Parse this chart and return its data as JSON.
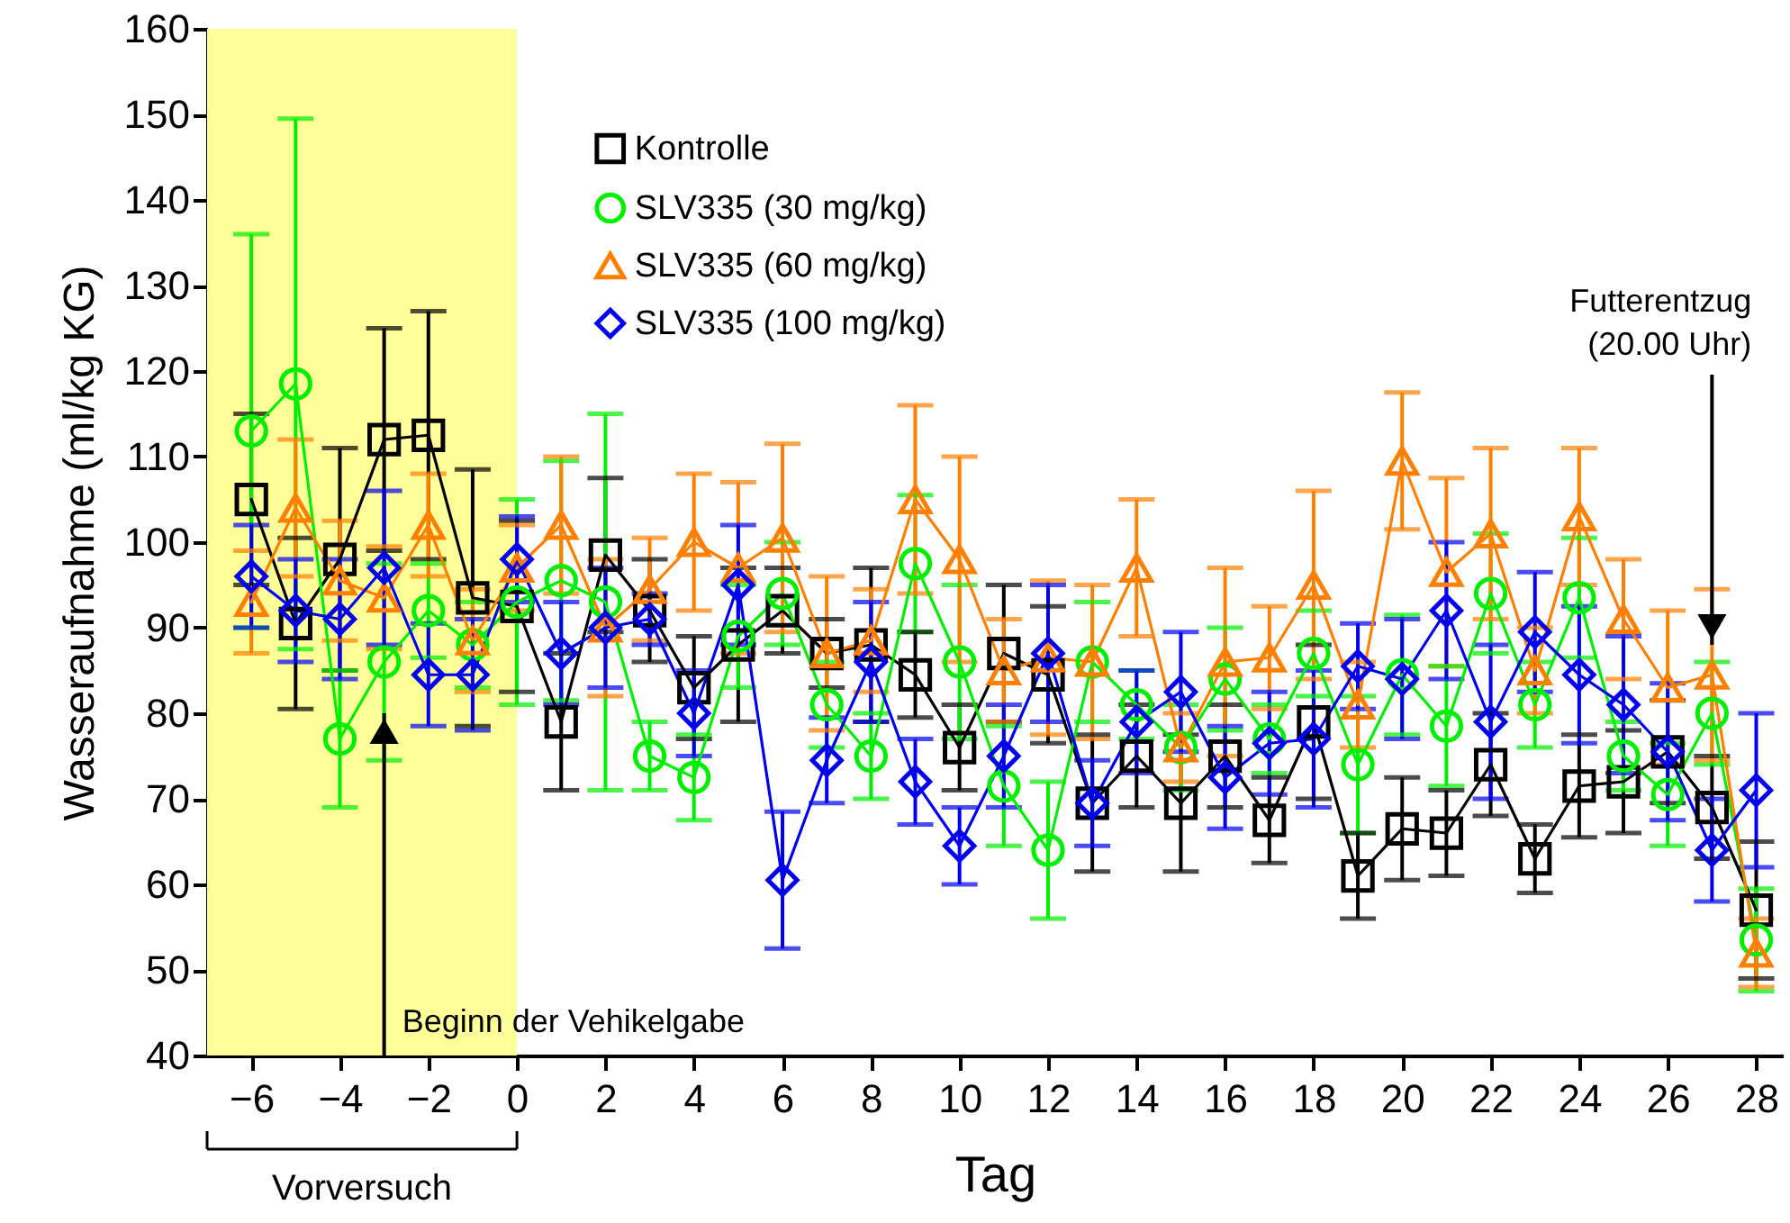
{
  "chart_data": {
    "type": "line",
    "xlabel": "Tag",
    "ylabel": "Wasseraufnahme (ml/kg KG)",
    "x": [
      -6,
      -5,
      -4,
      -3,
      -2,
      -1,
      0,
      1,
      2,
      3,
      4,
      5,
      6,
      7,
      8,
      9,
      10,
      11,
      12,
      13,
      14,
      15,
      16,
      17,
      18,
      19,
      20,
      21,
      22,
      23,
      24,
      25,
      26,
      27,
      28
    ],
    "xlim": [
      -7,
      28.6
    ],
    "xticks": [
      -6,
      -4,
      -2,
      0,
      2,
      4,
      6,
      8,
      10,
      12,
      14,
      16,
      18,
      20,
      22,
      24,
      26,
      28
    ],
    "ylim": [
      40,
      160
    ],
    "yticks": [
      40,
      50,
      60,
      70,
      80,
      90,
      100,
      110,
      120,
      130,
      140,
      150,
      160
    ],
    "grid": false,
    "legend": "top",
    "line_style": "solid",
    "series": [
      {
        "name": "Kontrolle",
        "color": "#000000",
        "marker": "square",
        "values": [
          105,
          90.5,
          98,
          112,
          112.5,
          93.5,
          92.5,
          79,
          98.5,
          92,
          83,
          88,
          92,
          87,
          88,
          84.5,
          76,
          87,
          84.5,
          69.5,
          75,
          69.5,
          75,
          67.5,
          79,
          61,
          66.5,
          66,
          74,
          63,
          71.5,
          72,
          75.5,
          69,
          57
        ],
        "errors": [
          10,
          10,
          13,
          13,
          14.5,
          15,
          10,
          8,
          9,
          6,
          6,
          9,
          5,
          4,
          9,
          5,
          5,
          8,
          8,
          8,
          6,
          8,
          6,
          5,
          9,
          5,
          6,
          5,
          6,
          4,
          6,
          6,
          6,
          6,
          8
        ]
      },
      {
        "name": "SLV335 (30 mg/kg)",
        "color": "#00ee00",
        "marker": "circle",
        "values": [
          113,
          118.5,
          77,
          86,
          92,
          88,
          93,
          95.5,
          93,
          75,
          72.5,
          89,
          94,
          81,
          75,
          97.5,
          86,
          71.5,
          64,
          86,
          81,
          76,
          84,
          77,
          87,
          74,
          84.5,
          78.5,
          94,
          81,
          93.5,
          75,
          70.5,
          80,
          53.5
        ],
        "errors": [
          23,
          31,
          8,
          11.5,
          5.5,
          5,
          12,
          14,
          22,
          4,
          5,
          6,
          6,
          5,
          5,
          8,
          9,
          7,
          8,
          7,
          4,
          5,
          6,
          4,
          5,
          8,
          7,
          7,
          7,
          5,
          7,
          4,
          6,
          6,
          6
        ]
      },
      {
        "name": "SLV335 (60 mg/kg)",
        "color": "#ff8000",
        "marker": "triangle",
        "values": [
          93,
          104,
          95.5,
          93.5,
          102,
          88.5,
          97,
          102,
          90,
          94.5,
          100,
          97,
          100.5,
          87,
          88.5,
          105,
          98,
          85,
          86.5,
          86,
          97,
          76,
          86,
          86.5,
          95,
          81,
          109.5,
          96.5,
          101,
          85,
          103,
          91,
          83,
          84.5,
          52
        ],
        "errors": [
          6,
          8,
          7,
          6,
          6,
          6,
          5,
          8,
          8,
          6,
          8,
          10,
          11,
          9,
          6,
          11,
          12,
          6,
          9,
          9,
          8,
          4,
          11,
          6,
          11,
          5,
          8,
          11,
          10,
          5,
          8,
          7,
          9,
          10,
          4
        ]
      },
      {
        "name": "SLV335 (100 mg/kg)",
        "color": "#0000ee",
        "marker": "diamond",
        "values": [
          96,
          92,
          91,
          97,
          84.5,
          84.5,
          98,
          87,
          90,
          91,
          80,
          95,
          60.5,
          74.5,
          86,
          72,
          64.5,
          75,
          87,
          69.5,
          79,
          82.5,
          72.5,
          76.5,
          77,
          85.5,
          84,
          92,
          79,
          89.5,
          84.5,
          81,
          75.5,
          64,
          71
        ],
        "errors": [
          6,
          6,
          7,
          9,
          6,
          6.5,
          5,
          6,
          7,
          3,
          5,
          7,
          8,
          5,
          7,
          5,
          4.5,
          6,
          8,
          5,
          6,
          7,
          6,
          6,
          8,
          5,
          7,
          8,
          9,
          7,
          8,
          8,
          8,
          6,
          9
        ]
      }
    ],
    "bands": [
      {
        "axis": "x",
        "from": -7,
        "to": 0,
        "color": "#ffff99"
      }
    ],
    "annotations": [
      {
        "text": "Beginn der  Vehikelgabe",
        "x": -3,
        "y": 80
      },
      {
        "text": "Futterentzug\n(20.00 Uhr)",
        "x": 27,
        "y": 88
      },
      "Vorversuch"
    ]
  }
}
